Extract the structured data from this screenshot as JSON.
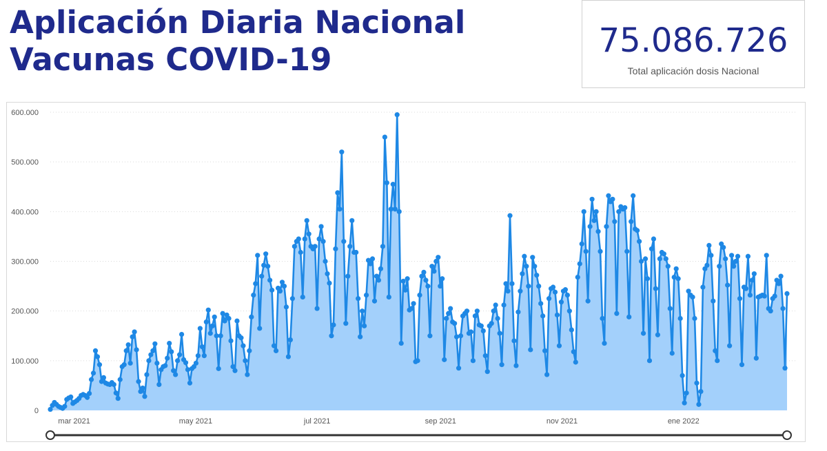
{
  "title": {
    "line1": "Aplicación Diaria Nacional",
    "line2": "Vacunas COVID-19"
  },
  "kpi": {
    "value": "75.086.726",
    "label": "Total aplicación dosis Nacional"
  },
  "colors": {
    "title": "#1f2a8c",
    "line": "#1e88e5",
    "area": "#a3d0fb",
    "slider": "#333333"
  },
  "chart_data": {
    "type": "area",
    "title": "",
    "xlabel": "",
    "ylabel": "",
    "x_start": "2021-02-17",
    "x_end": "2022-02-22",
    "ylim": [
      0,
      600000
    ],
    "y_ticks": [
      "0",
      "100.000",
      "200.000",
      "300.000",
      "400.000",
      "500.000",
      "600.000"
    ],
    "x_ticks": [
      {
        "label": "mar 2021",
        "date": "2021-03-01"
      },
      {
        "label": "may 2021",
        "date": "2021-05-01"
      },
      {
        "label": "jul 2021",
        "date": "2021-07-01"
      },
      {
        "label": "sep 2021",
        "date": "2021-09-01"
      },
      {
        "label": "nov 2021",
        "date": "2021-11-01"
      },
      {
        "label": "ene 2022",
        "date": "2022-01-01"
      }
    ],
    "grid": true,
    "legend": "none",
    "series": [
      {
        "values": [
          2000,
          10000,
          16000,
          12000,
          8000,
          6000,
          4000,
          8000,
          22000,
          25000,
          27000,
          14000,
          17000,
          20000,
          24000,
          30000,
          32000,
          30000,
          26000,
          34000,
          62000,
          75000,
          120000,
          108000,
          92000,
          58000,
          66000,
          55000,
          53000,
          52000,
          56000,
          52000,
          35000,
          24000,
          62000,
          88000,
          92000,
          120000,
          132000,
          95000,
          148000,
          158000,
          122000,
          58000,
          38000,
          45000,
          28000,
          72000,
          100000,
          112000,
          120000,
          134000,
          95000,
          52000,
          82000,
          88000,
          90000,
          105000,
          135000,
          118000,
          80000,
          72000,
          100000,
          112000,
          153000,
          102000,
          96000,
          82000,
          55000,
          84000,
          88000,
          95000,
          110000,
          165000,
          128000,
          110000,
          178000,
          202000,
          155000,
          170000,
          188000,
          150000,
          84000,
          150000,
          195000,
          180000,
          192000,
          185000,
          140000,
          88000,
          80000,
          180000,
          150000,
          146000,
          130000,
          100000,
          72000,
          120000,
          188000,
          232000,
          255000,
          312000,
          165000,
          270000,
          292000,
          315000,
          290000,
          262000,
          242000,
          130000,
          120000,
          246000,
          240000,
          258000,
          250000,
          208000,
          108000,
          142000,
          225000,
          330000,
          340000,
          345000,
          318000,
          228000,
          345000,
          382000,
          355000,
          330000,
          325000,
          330000,
          205000,
          345000,
          370000,
          340000,
          300000,
          275000,
          256000,
          150000,
          172000,
          325000,
          438000,
          405000,
          520000,
          340000,
          175000,
          270000,
          330000,
          382000,
          318000,
          318000,
          225000,
          148000,
          200000,
          170000,
          232000,
          302000,
          295000,
          305000,
          220000,
          270000,
          262000,
          285000,
          330000,
          550000,
          458000,
          228000,
          405000,
          455000,
          405000,
          595000,
          400000,
          135000,
          260000,
          242000,
          265000,
          202000,
          205000,
          215000,
          98000,
          100000,
          232000,
          270000,
          278000,
          262000,
          250000,
          150000,
          290000,
          280000,
          300000,
          308000,
          250000,
          265000,
          102000,
          185000,
          195000,
          205000,
          178000,
          175000,
          148000,
          85000,
          150000,
          190000,
          195000,
          200000,
          155000,
          158000,
          100000,
          190000,
          200000,
          172000,
          170000,
          160000,
          110000,
          78000,
          170000,
          175000,
          200000,
          212000,
          185000,
          155000,
          92000,
          212000,
          255000,
          240000,
          392000,
          255000,
          140000,
          90000,
          198000,
          240000,
          275000,
          310000,
          290000,
          250000,
          122000,
          308000,
          290000,
          272000,
          250000,
          215000,
          190000,
          120000,
          72000,
          225000,
          245000,
          248000,
          238000,
          192000,
          130000,
          218000,
          240000,
          243000,
          232000,
          200000,
          162000,
          118000,
          97000,
          268000,
          295000,
          335000,
          400000,
          320000,
          220000,
          370000,
          425000,
          382000,
          400000,
          360000,
          320000,
          185000,
          135000,
          370000,
          432000,
          420000,
          425000,
          380000,
          195000,
          400000,
          410000,
          405000,
          408000,
          320000,
          188000,
          380000,
          432000,
          365000,
          362000,
          340000,
          300000,
          155000,
          305000,
          265000,
          100000,
          325000,
          345000,
          245000,
          152000,
          305000,
          318000,
          315000,
          305000,
          290000,
          205000,
          115000,
          268000,
          285000,
          265000,
          185000,
          70000,
          15000,
          35000,
          240000,
          232000,
          228000,
          185000,
          55000,
          12000,
          38000,
          248000,
          285000,
          292000,
          332000,
          312000,
          220000,
          120000,
          100000,
          290000,
          335000,
          328000,
          305000,
          252000,
          130000,
          312000,
          290000,
          300000,
          310000,
          225000,
          92000,
          248000,
          245000,
          310000,
          232000,
          262000,
          275000,
          105000,
          228000,
          230000,
          232000,
          230000,
          312000,
          205000,
          200000,
          225000,
          230000,
          262000,
          255000,
          270000,
          205000,
          85000,
          235000
        ]
      }
    ]
  },
  "slider": {
    "start_handle": "range-start",
    "end_handle": "range-end"
  }
}
